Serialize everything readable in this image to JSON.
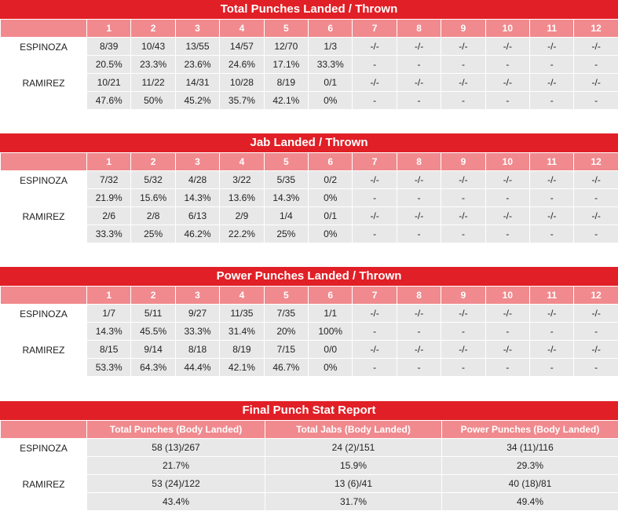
{
  "rounds": [
    "1",
    "2",
    "3",
    "4",
    "5",
    "6",
    "7",
    "8",
    "9",
    "10",
    "11",
    "12"
  ],
  "sections": [
    {
      "title": "Total Punches Landed / Thrown",
      "fighters": [
        {
          "name": "ESPINOZA",
          "landed": [
            "8/39",
            "10/43",
            "13/55",
            "14/57",
            "12/70",
            "1/3",
            "-/-",
            "-/-",
            "-/-",
            "-/-",
            "-/-",
            "-/-"
          ],
          "pct": [
            "20.5%",
            "23.3%",
            "23.6%",
            "24.6%",
            "17.1%",
            "33.3%",
            "-",
            "-",
            "-",
            "-",
            "-",
            "-"
          ]
        },
        {
          "name": "RAMIREZ",
          "landed": [
            "10/21",
            "11/22",
            "14/31",
            "10/28",
            "8/19",
            "0/1",
            "-/-",
            "-/-",
            "-/-",
            "-/-",
            "-/-",
            "-/-"
          ],
          "pct": [
            "47.6%",
            "50%",
            "45.2%",
            "35.7%",
            "42.1%",
            "0%",
            "-",
            "-",
            "-",
            "-",
            "-",
            "-"
          ]
        }
      ]
    },
    {
      "title": "Jab Landed / Thrown",
      "fighters": [
        {
          "name": "ESPINOZA",
          "landed": [
            "7/32",
            "5/32",
            "4/28",
            "3/22",
            "5/35",
            "0/2",
            "-/-",
            "-/-",
            "-/-",
            "-/-",
            "-/-",
            "-/-"
          ],
          "pct": [
            "21.9%",
            "15.6%",
            "14.3%",
            "13.6%",
            "14.3%",
            "0%",
            "-",
            "-",
            "-",
            "-",
            "-",
            "-"
          ]
        },
        {
          "name": "RAMIREZ",
          "landed": [
            "2/6",
            "2/8",
            "6/13",
            "2/9",
            "1/4",
            "0/1",
            "-/-",
            "-/-",
            "-/-",
            "-/-",
            "-/-",
            "-/-"
          ],
          "pct": [
            "33.3%",
            "25%",
            "46.2%",
            "22.2%",
            "25%",
            "0%",
            "-",
            "-",
            "-",
            "-",
            "-",
            "-"
          ]
        }
      ]
    },
    {
      "title": "Power Punches Landed / Thrown",
      "fighters": [
        {
          "name": "ESPINOZA",
          "landed": [
            "1/7",
            "5/11",
            "9/27",
            "11/35",
            "7/35",
            "1/1",
            "-/-",
            "-/-",
            "-/-",
            "-/-",
            "-/-",
            "-/-"
          ],
          "pct": [
            "14.3%",
            "45.5%",
            "33.3%",
            "31.4%",
            "20%",
            "100%",
            "-",
            "-",
            "-",
            "-",
            "-",
            "-"
          ]
        },
        {
          "name": "RAMIREZ",
          "landed": [
            "8/15",
            "9/14",
            "8/18",
            "8/19",
            "7/15",
            "0/0",
            "-/-",
            "-/-",
            "-/-",
            "-/-",
            "-/-",
            "-/-"
          ],
          "pct": [
            "53.3%",
            "64.3%",
            "44.4%",
            "42.1%",
            "46.7%",
            "0%",
            "-",
            "-",
            "-",
            "-",
            "-",
            "-"
          ]
        }
      ]
    }
  ],
  "final": {
    "title": "Final Punch Stat Report",
    "headers": [
      "Total Punches (Body Landed)",
      "Total Jabs (Body Landed)",
      "Power Punches (Body Landed)"
    ],
    "fighters": [
      {
        "name": "ESPINOZA",
        "values": [
          "58 (13)/267",
          "24 (2)/151",
          "34 (11)/116"
        ],
        "pct": [
          "21.7%",
          "15.9%",
          "29.3%"
        ]
      },
      {
        "name": "RAMIREZ",
        "values": [
          "53 (24)/122",
          "13 (6)/41",
          "40 (18)/81"
        ],
        "pct": [
          "43.4%",
          "31.7%",
          "49.4%"
        ]
      }
    ]
  },
  "colors": {
    "title_bg": "#e11f26",
    "header_bg": "#f08a8e",
    "cell_bg": "#e8e8e8"
  }
}
